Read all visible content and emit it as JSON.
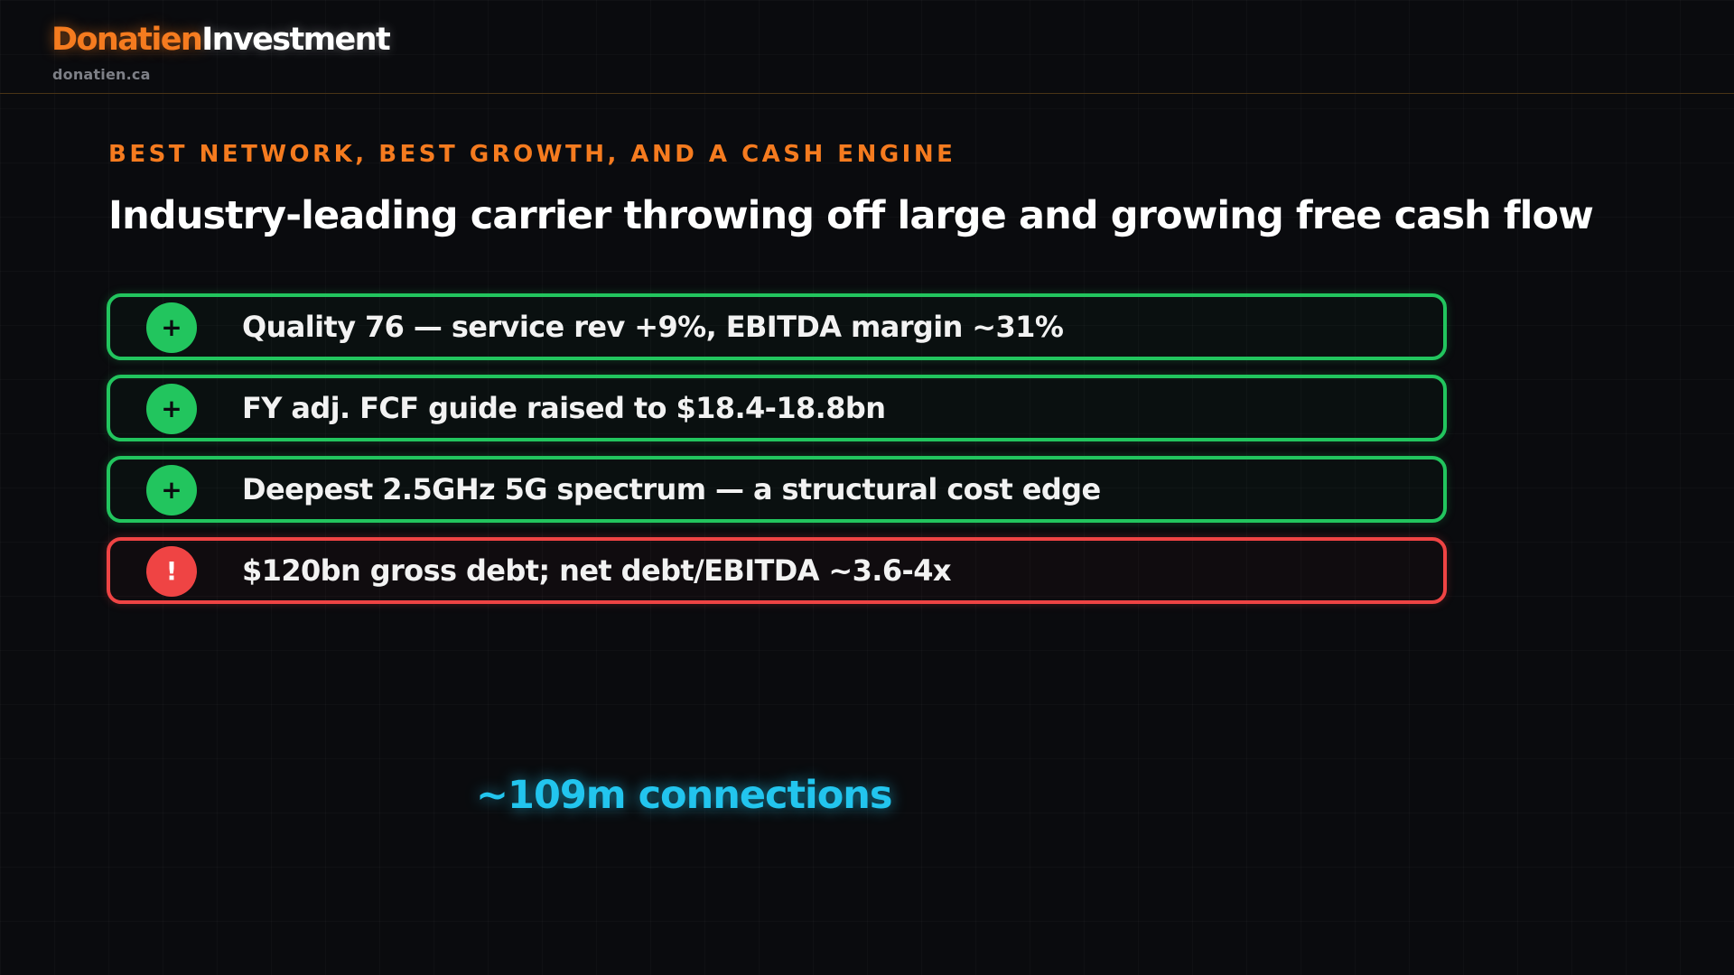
{
  "brand": {
    "name_primary": "Donatien",
    "name_secondary": "Investment",
    "domain": "donatien.ca",
    "accent_color": "#f57b1f"
  },
  "slide": {
    "kicker": "BEST NETWORK, BEST GROWTH, AND A CASH ENGINE",
    "title": "Industry-leading carrier throwing off large and growing free cash flow"
  },
  "points": [
    {
      "type": "positive",
      "icon": "plus-icon",
      "symbol": "+",
      "text": "Quality 76 — service rev +9%, EBITDA margin ~31%",
      "color": "#22c55e"
    },
    {
      "type": "positive",
      "icon": "plus-icon",
      "symbol": "+",
      "text": "FY adj. FCF guide raised to $18.4-18.8bn",
      "color": "#22c55e"
    },
    {
      "type": "positive",
      "icon": "plus-icon",
      "symbol": "+",
      "text": "Deepest 2.5GHz 5G spectrum — a structural cost edge",
      "color": "#22c55e"
    },
    {
      "type": "risk",
      "icon": "exclamation-icon",
      "symbol": "!",
      "text": "$120bn gross debt; net debt/EBITDA ~3.6-4x",
      "color": "#ef4444"
    }
  ],
  "stat": {
    "text": "~109m connections",
    "color": "#22c5ee"
  }
}
